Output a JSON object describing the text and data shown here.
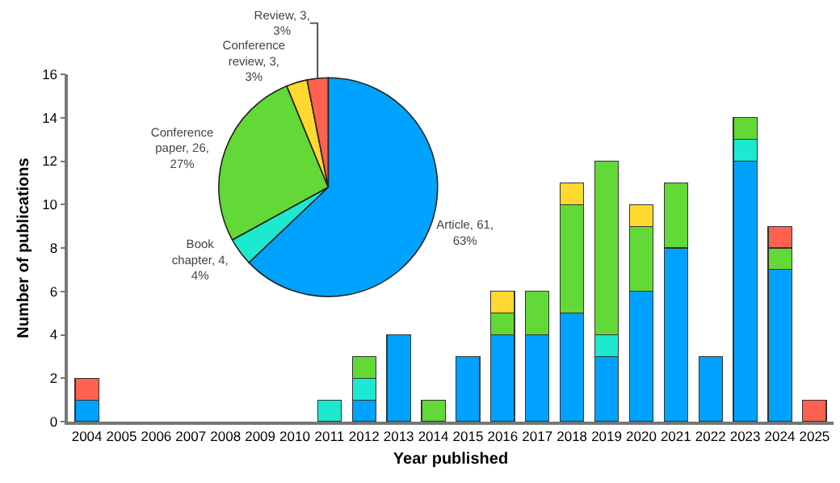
{
  "chart_data": [
    {
      "type": "bar",
      "stacked": true,
      "xlabel": "Year published",
      "ylabel": "Number of publications",
      "categories": [
        "2004",
        "2005",
        "2006",
        "2007",
        "2008",
        "2009",
        "2010",
        "2011",
        "2012",
        "2013",
        "2014",
        "2015",
        "2016",
        "2017",
        "2018",
        "2019",
        "2020",
        "2021",
        "2022",
        "2023",
        "2024",
        "2025"
      ],
      "series": [
        {
          "color": "#00a2ff",
          "values": [
            1,
            0,
            0,
            0,
            0,
            0,
            0,
            0,
            1,
            4,
            0,
            3,
            4,
            4,
            5,
            3,
            6,
            8,
            3,
            12,
            7,
            0
          ]
        },
        {
          "color": "#1de9d0",
          "values": [
            0,
            0,
            0,
            0,
            0,
            0,
            0,
            1,
            1,
            0,
            0,
            0,
            0,
            0,
            0,
            1,
            0,
            0,
            0,
            1,
            0,
            0
          ]
        },
        {
          "color": "#62d936",
          "values": [
            0,
            0,
            0,
            0,
            0,
            0,
            0,
            0,
            1,
            0,
            1,
            0,
            1,
            2,
            5,
            8,
            3,
            3,
            0,
            1,
            1,
            0
          ]
        },
        {
          "color": "#ffd92f",
          "values": [
            0,
            0,
            0,
            0,
            0,
            0,
            0,
            0,
            0,
            0,
            0,
            0,
            1,
            0,
            1,
            0,
            1,
            0,
            0,
            0,
            0,
            0
          ]
        },
        {
          "color": "#ff6150",
          "values": [
            1,
            0,
            0,
            0,
            0,
            0,
            0,
            0,
            0,
            0,
            0,
            0,
            0,
            0,
            0,
            0,
            0,
            0,
            0,
            0,
            1,
            1
          ]
        }
      ],
      "ylim": [
        0,
        16
      ],
      "yticks": [
        0,
        2,
        4,
        6,
        8,
        10,
        12,
        14,
        16
      ]
    },
    {
      "type": "pie",
      "categories": [
        "Article",
        "Book chapter",
        "Conference paper",
        "Conference review",
        "Review"
      ],
      "values": [
        61,
        4,
        26,
        3,
        3
      ],
      "value_labels": [
        "61, 63%",
        "4, 4%",
        "26, 27%",
        "3, 3%",
        "3, 3%"
      ],
      "colors": [
        "#00a2ff",
        "#1de9d0",
        "#62d936",
        "#ffd92f",
        "#ff6150"
      ]
    }
  ]
}
